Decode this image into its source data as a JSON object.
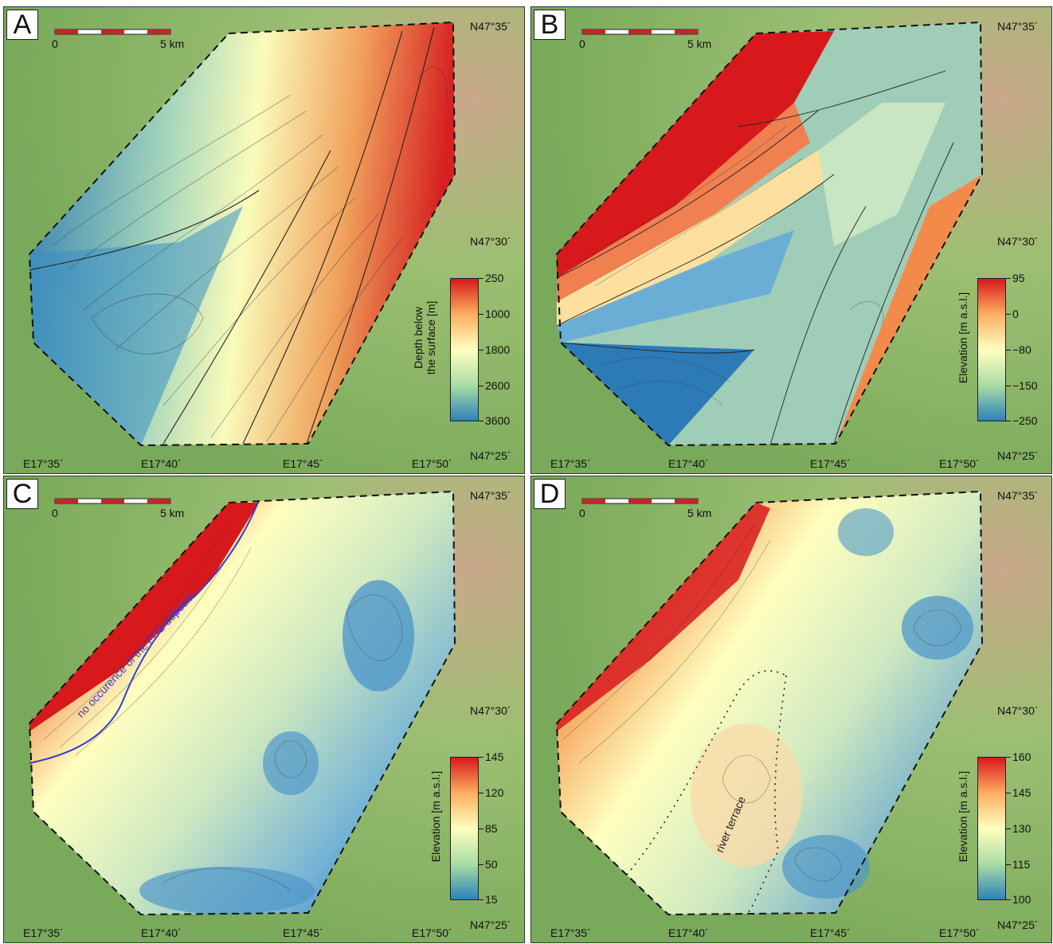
{
  "scalebar": {
    "zero": "0",
    "length": "5 km"
  },
  "coords": {
    "lat_top": "N47°35´",
    "lat_mid": "N47°30´",
    "lat_bottom": "N47°25´",
    "lon_1": "E17°35´",
    "lon_2": "E17°40´",
    "lon_3": "E17°45´",
    "lon_4": "E17°50´"
  },
  "panels": [
    {
      "letter": "A",
      "colorbar_title_line1": "Depth below",
      "colorbar_title_line2": "the surface [m]",
      "ticks": [
        "250",
        "1000",
        "1800",
        "2600",
        "3600"
      ]
    },
    {
      "letter": "B",
      "colorbar_title_line1": "Elevation [m a.s.l.]",
      "colorbar_title_line2": "",
      "ticks": [
        "95",
        "0",
        "−80",
        "−150",
        "−250"
      ]
    },
    {
      "letter": "C",
      "colorbar_title_line1": "Elevation [m a.s.l.]",
      "colorbar_title_line2": "",
      "ticks": [
        "145",
        "120",
        "85",
        "50",
        "15"
      ],
      "annotation": "no occurence of the FDS deposits"
    },
    {
      "letter": "D",
      "colorbar_title_line1": "Elevation [m a.s.l.]",
      "colorbar_title_line2": "",
      "ticks": [
        "160",
        "145",
        "130",
        "115",
        "100"
      ],
      "annotation": "river terrace"
    }
  ],
  "colors": {
    "high": "#d7191c",
    "mid": "#ffffbf",
    "low": "#2c7bb6",
    "boundary": "#111111",
    "annotation_c": "#3a3acc",
    "terrain": "#8fb56b"
  }
}
